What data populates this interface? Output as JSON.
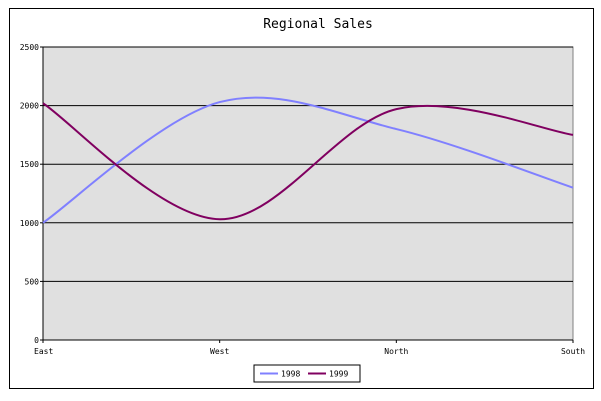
{
  "chart_data": {
    "type": "line",
    "title": "Regional Sales",
    "xlabel": "",
    "ylabel": "",
    "categories": [
      "East",
      "West",
      "North",
      "South"
    ],
    "series": [
      {
        "name": "1998",
        "values": [
          1000,
          2030,
          1800,
          1300
        ],
        "color": "#8080ff"
      },
      {
        "name": "1999",
        "values": [
          2020,
          1030,
          1970,
          1750
        ],
        "color": "#800060"
      }
    ],
    "ylim": [
      0,
      2500
    ],
    "yticks": [
      0,
      500,
      1000,
      1500,
      2000,
      2500
    ],
    "grid": true,
    "smooth": true,
    "plot_background": "#e0e0e0",
    "legend_position": "bottom"
  }
}
